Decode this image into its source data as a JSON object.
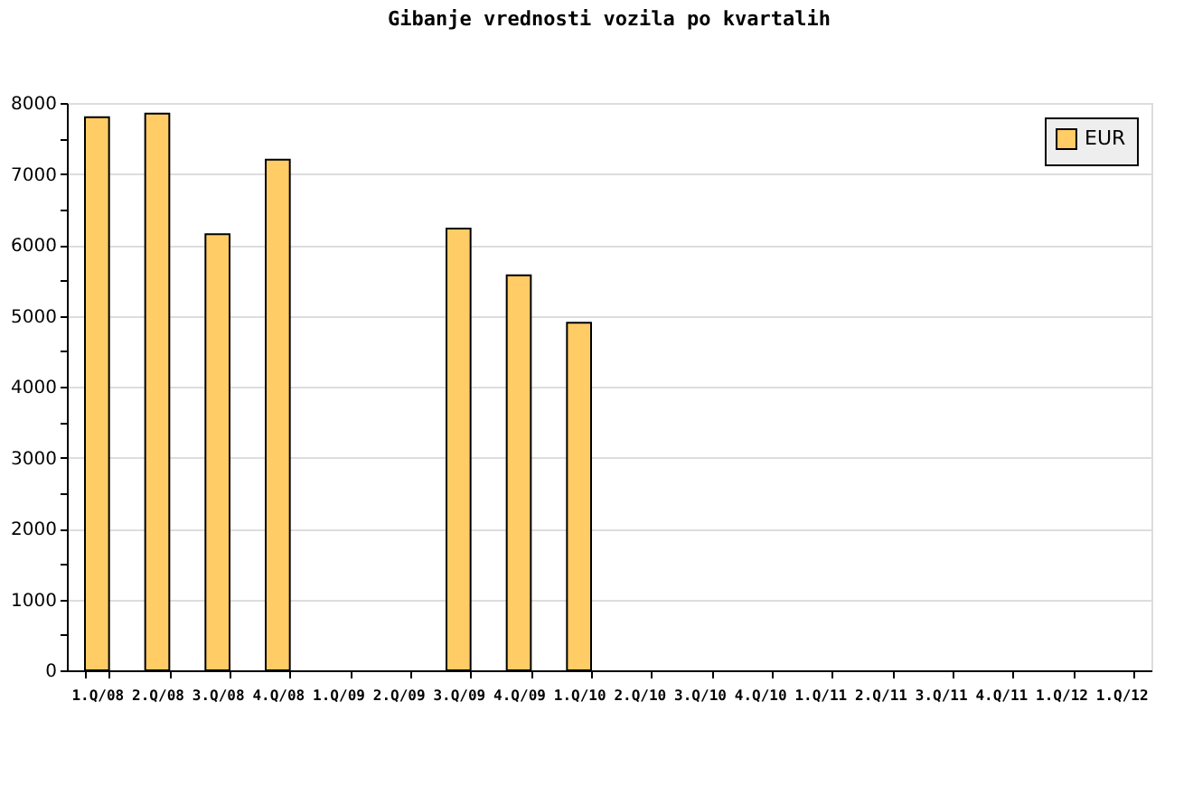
{
  "chart_data": {
    "type": "bar",
    "title": "Gibanje vrednosti vozila po kvartalih",
    "categories": [
      "1.Q/08",
      "2.Q/08",
      "3.Q/08",
      "4.Q/08",
      "1.Q/09",
      "2.Q/09",
      "3.Q/09",
      "4.Q/09",
      "1.Q/10",
      "2.Q/10",
      "3.Q/10",
      "4.Q/10",
      "1.Q/11",
      "2.Q/11",
      "3.Q/11",
      "4.Q/11",
      "1.Q/12",
      "1.Q/12"
    ],
    "series": [
      {
        "name": "EUR",
        "color": "#ffcc66",
        "values": [
          7800,
          7850,
          6150,
          7200,
          null,
          null,
          6230,
          5570,
          4900,
          null,
          null,
          null,
          null,
          null,
          null,
          null,
          null,
          null
        ]
      }
    ],
    "ylim": [
      0,
      8000
    ],
    "yticks": [
      0,
      {
        "value": 500,
        "label": null
      },
      1000,
      {
        "value": 1500,
        "label": null
      },
      2000,
      {
        "value": 2500,
        "label": null
      },
      3000,
      {
        "value": 3500,
        "label": null
      },
      4000,
      {
        "value": 4500,
        "label": null
      },
      5000,
      {
        "value": 5500,
        "label": null
      },
      6000,
      {
        "value": 6500,
        "label": null
      },
      7000,
      {
        "value": 7500,
        "label": null
      },
      8000
    ],
    "grid": "y",
    "legend": "top right"
  }
}
